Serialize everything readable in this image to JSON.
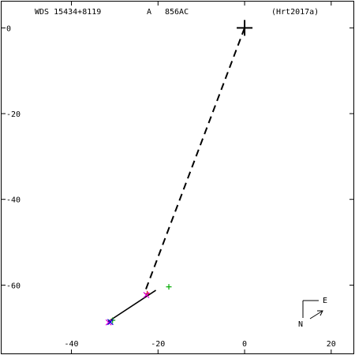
{
  "header": {
    "system": "WDS 15434+8119",
    "pair": "A",
    "discoverer": "856AC",
    "reference": "(Hrt2017a)"
  },
  "chart_data": {
    "type": "scatter",
    "title": "WDS 15434+8119",
    "xlabel": "",
    "ylabel": "",
    "xlim": [
      -56.5,
      25.5
    ],
    "ylim": [
      -76.3,
      6.5
    ],
    "xticks": [
      -40,
      -20,
      0,
      20
    ],
    "yticks": [
      0,
      -20,
      -40,
      -60
    ],
    "grid": false,
    "primary": {
      "x": 0,
      "y": 0
    },
    "reference_line": {
      "from": [
        0,
        0
      ],
      "to": [
        -23,
        -61.5
      ],
      "style": "dashed"
    },
    "orbit_segment": {
      "from": [
        -31.5,
        -68.5
      ],
      "to": [
        -20.5,
        -61.2
      ]
    },
    "series": [
      {
        "color": "#00aa00",
        "marker": "+",
        "points": [
          [
            -17.5,
            -60.4
          ],
          [
            -30.5,
            -68.2
          ]
        ]
      },
      {
        "color": "#cc0000",
        "marker": "+",
        "points": [
          [
            -22.5,
            -62.0
          ]
        ]
      },
      {
        "color": "#dd00dd",
        "marker": "x",
        "points": [
          [
            -31.4,
            -68.7
          ],
          [
            -22.7,
            -62.3
          ]
        ]
      },
      {
        "color": "#0000cc",
        "marker": "x",
        "points": [
          [
            -31.0,
            -68.6
          ]
        ]
      }
    ],
    "compass": {
      "north": "N",
      "east": "E"
    }
  }
}
